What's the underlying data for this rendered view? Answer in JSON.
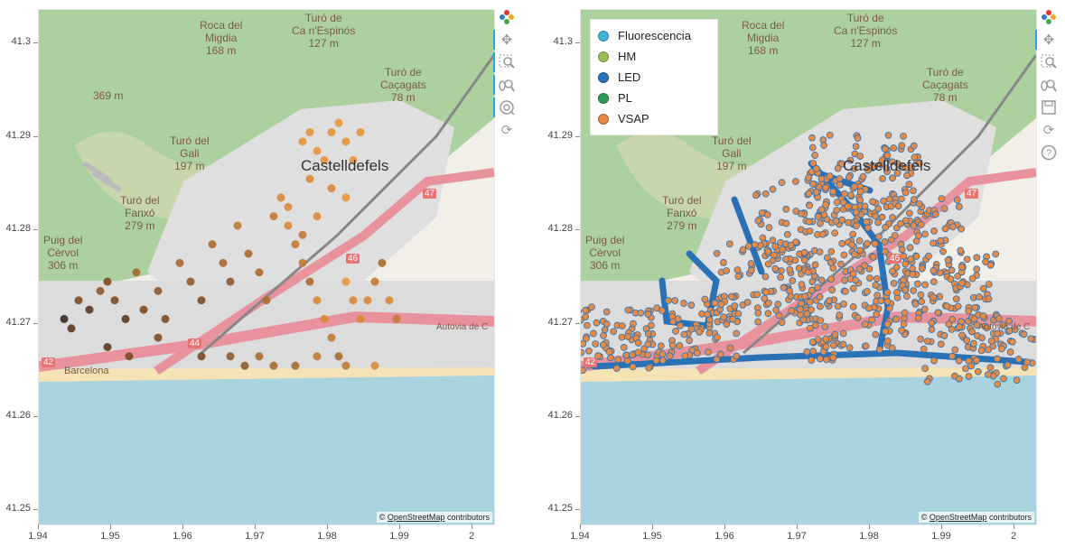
{
  "axes": {
    "x_ticks": [
      "1.94",
      "1.95",
      "1.96",
      "1.97",
      "1.98",
      "1.99",
      "2"
    ],
    "y_ticks": [
      "41.3",
      "41.29",
      "41.28",
      "41.27",
      "41.26",
      "41.25"
    ],
    "x_range": [
      1.94,
      2.003
    ],
    "y_range": [
      41.2485,
      41.3036
    ]
  },
  "map_labels": {
    "roca_del_migdia": "Roca del\nMigdia\n168 m",
    "turo_ca_n_espinos": "Turó de\nCa n'Espinós\n127 m",
    "turo_cacagats": "Turó de\nCaçagats\n78 m",
    "peak_369": "369 m",
    "turo_del_gall": "Turó del\nGall\n197 m",
    "castelldefels": "Castelldefels",
    "turo_del_fanxo": "Turó del\nFanxó\n279 m",
    "puig_del_cervol": "Puig del\nCèrvol\n306 m",
    "autovia": "Autovia de C",
    "road_47": "47",
    "road_46": "46",
    "road_44": "44",
    "road_42": "42",
    "barcelona": "Barcelona"
  },
  "attribution": {
    "prefix": "©",
    "link": "OpenStreetMap",
    "suffix": "contributors"
  },
  "toolbar_left": [
    {
      "name": "bokeh-logo-icon"
    },
    {
      "name": "pan-icon"
    },
    {
      "name": "box-zoom-icon"
    },
    {
      "name": "wheel-zoom-icon"
    },
    {
      "name": "tap-icon"
    },
    {
      "name": "reset-icon"
    }
  ],
  "toolbar_right": [
    {
      "name": "bokeh-logo-icon"
    },
    {
      "name": "pan-icon"
    },
    {
      "name": "box-zoom-icon"
    },
    {
      "name": "wheel-zoom-icon"
    },
    {
      "name": "save-icon"
    },
    {
      "name": "reset-icon"
    },
    {
      "name": "help-icon"
    }
  ],
  "legend": [
    {
      "label": "Fluorescencia",
      "color": "#3fb8d4"
    },
    {
      "label": "HM",
      "color": "#98bf5a"
    },
    {
      "label": "LED",
      "color": "#2a72b5"
    },
    {
      "label": "PL",
      "color": "#2e9a58"
    },
    {
      "label": "VSAP",
      "color": "#e68a45"
    }
  ],
  "colors": {
    "sea": "#a9d3df",
    "land": "#f2efe9",
    "forest": "#add19e",
    "urban": "#e0dfdf",
    "motorway": "#e8929e",
    "beach": "#f5e3b5"
  },
  "map_points": {
    "left_points": [
      {
        "lon": 1.9435,
        "lat": 41.2705,
        "v": 0.1
      },
      {
        "lon": 1.9445,
        "lat": 41.2695,
        "v": 0.2
      },
      {
        "lon": 1.9455,
        "lat": 41.2725,
        "v": 0.3
      },
      {
        "lon": 1.947,
        "lat": 41.2715,
        "v": 0.15
      },
      {
        "lon": 1.9485,
        "lat": 41.2735,
        "v": 0.4
      },
      {
        "lon": 1.9495,
        "lat": 41.2745,
        "v": 0.35
      },
      {
        "lon": 1.9505,
        "lat": 41.2725,
        "v": 0.3
      },
      {
        "lon": 1.952,
        "lat": 41.2705,
        "v": 0.2
      },
      {
        "lon": 1.9535,
        "lat": 41.2755,
        "v": 0.5
      },
      {
        "lon": 1.9545,
        "lat": 41.2715,
        "v": 0.25
      },
      {
        "lon": 1.9565,
        "lat": 41.2735,
        "v": 0.45
      },
      {
        "lon": 1.9575,
        "lat": 41.2705,
        "v": 0.35
      },
      {
        "lon": 1.9595,
        "lat": 41.2765,
        "v": 0.55
      },
      {
        "lon": 1.961,
        "lat": 41.2745,
        "v": 0.4
      },
      {
        "lon": 1.9625,
        "lat": 41.2725,
        "v": 0.3
      },
      {
        "lon": 1.964,
        "lat": 41.2785,
        "v": 0.6
      },
      {
        "lon": 1.9655,
        "lat": 41.2765,
        "v": 0.5
      },
      {
        "lon": 1.9665,
        "lat": 41.2745,
        "v": 0.45
      },
      {
        "lon": 1.9675,
        "lat": 41.2805,
        "v": 0.65
      },
      {
        "lon": 1.969,
        "lat": 41.2775,
        "v": 0.55
      },
      {
        "lon": 1.9705,
        "lat": 41.2755,
        "v": 0.6
      },
      {
        "lon": 1.9715,
        "lat": 41.2725,
        "v": 0.5
      },
      {
        "lon": 1.9725,
        "lat": 41.2815,
        "v": 0.7
      },
      {
        "lon": 1.9735,
        "lat": 41.2835,
        "v": 0.8
      },
      {
        "lon": 1.9745,
        "lat": 41.2805,
        "v": 0.75
      },
      {
        "lon": 1.9755,
        "lat": 41.2785,
        "v": 0.7
      },
      {
        "lon": 1.9765,
        "lat": 41.2765,
        "v": 0.65
      },
      {
        "lon": 1.9775,
        "lat": 41.2745,
        "v": 0.6
      },
      {
        "lon": 1.9785,
        "lat": 41.2725,
        "v": 0.85
      },
      {
        "lon": 1.9795,
        "lat": 41.2705,
        "v": 0.8
      },
      {
        "lon": 1.9805,
        "lat": 41.2685,
        "v": 0.7
      },
      {
        "lon": 1.9815,
        "lat": 41.2665,
        "v": 0.6
      },
      {
        "lon": 1.9825,
        "lat": 41.2745,
        "v": 0.9
      },
      {
        "lon": 1.9835,
        "lat": 41.2725,
        "v": 0.85
      },
      {
        "lon": 1.9845,
        "lat": 41.2705,
        "v": 0.75
      },
      {
        "lon": 1.9855,
        "lat": 41.2725,
        "v": 0.8
      },
      {
        "lon": 1.9865,
        "lat": 41.2745,
        "v": 0.7
      },
      {
        "lon": 1.9875,
        "lat": 41.2765,
        "v": 0.6
      },
      {
        "lon": 1.9885,
        "lat": 41.2725,
        "v": 0.75
      },
      {
        "lon": 1.9895,
        "lat": 41.2705,
        "v": 0.7
      },
      {
        "lon": 1.9765,
        "lat": 41.2895,
        "v": 0.95
      },
      {
        "lon": 1.9775,
        "lat": 41.2905,
        "v": 0.9
      },
      {
        "lon": 1.9785,
        "lat": 41.2885,
        "v": 0.95
      },
      {
        "lon": 1.9795,
        "lat": 41.2875,
        "v": 1.0
      },
      {
        "lon": 1.9805,
        "lat": 41.2905,
        "v": 0.9
      },
      {
        "lon": 1.9815,
        "lat": 41.2915,
        "v": 0.95
      },
      {
        "lon": 1.9825,
        "lat": 41.2895,
        "v": 1.0
      },
      {
        "lon": 1.9835,
        "lat": 41.2875,
        "v": 0.9
      },
      {
        "lon": 1.9845,
        "lat": 41.2905,
        "v": 0.95
      },
      {
        "lon": 1.9775,
        "lat": 41.2855,
        "v": 0.85
      },
      {
        "lon": 1.9805,
        "lat": 41.2845,
        "v": 0.8
      },
      {
        "lon": 1.9825,
        "lat": 41.2835,
        "v": 0.9
      },
      {
        "lon": 1.9745,
        "lat": 41.2825,
        "v": 0.75
      },
      {
        "lon": 1.9765,
        "lat": 41.2795,
        "v": 0.7
      },
      {
        "lon": 1.9785,
        "lat": 41.2815,
        "v": 0.85
      },
      {
        "lon": 1.9705,
        "lat": 41.2665,
        "v": 0.55
      },
      {
        "lon": 1.9725,
        "lat": 41.2655,
        "v": 0.5
      },
      {
        "lon": 1.9685,
        "lat": 41.2655,
        "v": 0.45
      },
      {
        "lon": 1.9665,
        "lat": 41.2665,
        "v": 0.4
      },
      {
        "lon": 1.9625,
        "lat": 41.2665,
        "v": 0.35
      },
      {
        "lon": 1.9755,
        "lat": 41.2655,
        "v": 0.6
      },
      {
        "lon": 1.9785,
        "lat": 41.2665,
        "v": 0.65
      },
      {
        "lon": 1.9825,
        "lat": 41.2655,
        "v": 0.7
      },
      {
        "lon": 1.9865,
        "lat": 41.2655,
        "v": 0.75
      },
      {
        "lon": 1.9565,
        "lat": 41.2685,
        "v": 0.3
      },
      {
        "lon": 1.9525,
        "lat": 41.2665,
        "v": 0.25
      },
      {
        "lon": 1.9495,
        "lat": 41.2675,
        "v": 0.2
      }
    ],
    "right_clusters": [
      {
        "lon": 1.945,
        "lat": 41.2685,
        "n": 80,
        "spread": 0.0035
      },
      {
        "lon": 1.956,
        "lat": 41.2695,
        "n": 70,
        "spread": 0.0035
      },
      {
        "lon": 1.966,
        "lat": 41.2745,
        "n": 110,
        "spread": 0.0045
      },
      {
        "lon": 1.972,
        "lat": 41.2805,
        "n": 120,
        "spread": 0.005
      },
      {
        "lon": 1.9795,
        "lat": 41.2855,
        "n": 120,
        "spread": 0.005
      },
      {
        "lon": 1.985,
        "lat": 41.2785,
        "n": 110,
        "spread": 0.005
      },
      {
        "lon": 1.991,
        "lat": 41.2735,
        "n": 80,
        "spread": 0.004
      },
      {
        "lon": 1.978,
        "lat": 41.2705,
        "n": 110,
        "spread": 0.0045
      },
      {
        "lon": 1.993,
        "lat": 41.2675,
        "n": 60,
        "spread": 0.004
      },
      {
        "lon": 1.998,
        "lat": 41.2665,
        "n": 30,
        "spread": 0.003
      }
    ]
  }
}
